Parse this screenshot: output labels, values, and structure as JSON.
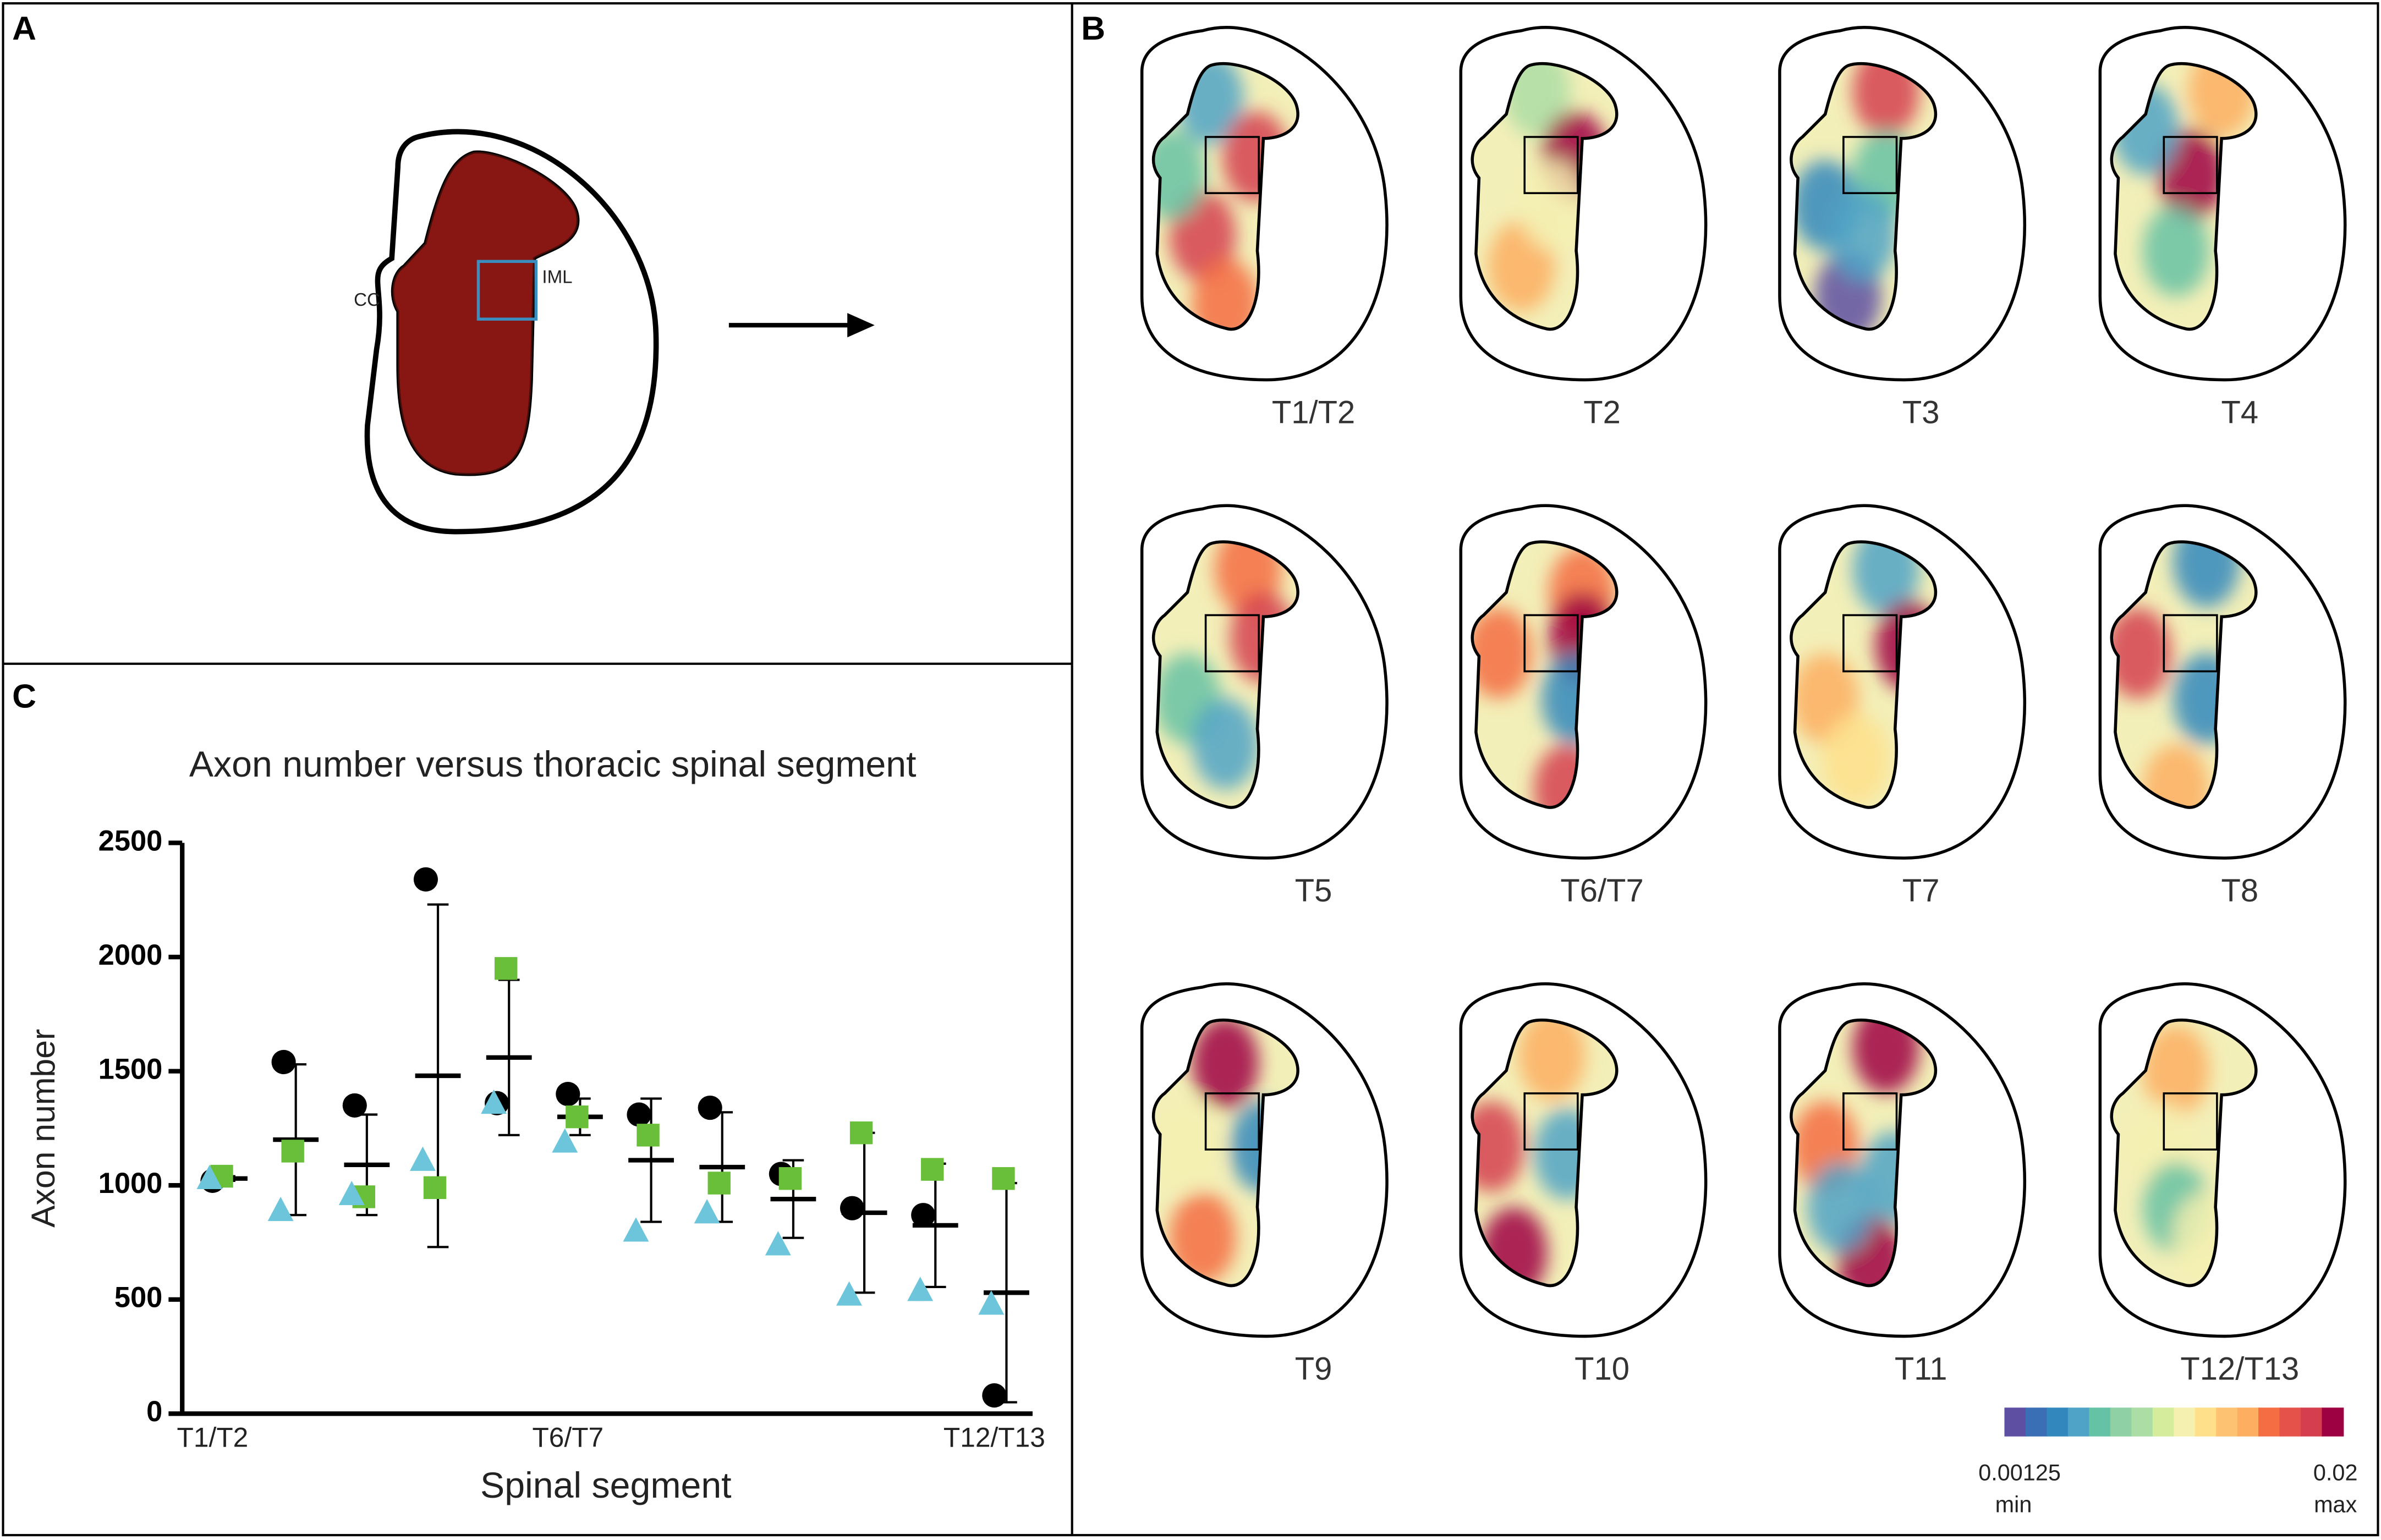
{
  "panel_labels": [
    "A",
    "B",
    "C"
  ],
  "panel_a": {
    "labels": [
      "CC",
      "IML"
    ]
  },
  "panel_b": {
    "sections": [
      "T1/T2",
      "T2",
      "T3",
      "T4",
      "T5",
      "T6/T7",
      "T7",
      "T8",
      "T9",
      "T10",
      "T11",
      "T12/T13"
    ],
    "colorbar": {
      "min_value": 0.00125,
      "min_label": "min",
      "max_value": 0.02,
      "max_label": "max"
    }
  },
  "chart_data": {
    "type": "scatter",
    "title": "Axon number versus thoracic spinal segment",
    "xlabel": "Spinal segment",
    "ylabel": "Axon number",
    "categories": [
      "T1/T2",
      null,
      null,
      null,
      null,
      "T6/T7",
      null,
      null,
      null,
      null,
      null,
      "T12/T13"
    ],
    "series": [
      {
        "marker": "circle",
        "color": "#000000",
        "values": [
          1020,
          1540,
          1350,
          2340,
          1360,
          1400,
          1310,
          1340,
          1050,
          900,
          870,
          80
        ]
      },
      {
        "marker": "square",
        "color": "#6abf3a",
        "values": [
          1040,
          1150,
          950,
          990,
          1950,
          1300,
          1220,
          1010,
          1030,
          1230,
          1070,
          1030
        ]
      },
      {
        "marker": "triangle",
        "color": "#6cc5da",
        "values": [
          1030,
          890,
          960,
          1110,
          1360,
          1190,
          800,
          880,
          740,
          520,
          540,
          480
        ]
      }
    ],
    "error_bars": {
      "mean": [
        1030,
        1200,
        1090,
        1480,
        1560,
        1300,
        1110,
        1080,
        940,
        880,
        825,
        530
      ],
      "sd": [
        10,
        330,
        220,
        750,
        340,
        80,
        270,
        240,
        170,
        350,
        270,
        480
      ]
    },
    "ylim": [
      0,
      2500
    ],
    "yticks": [
      0,
      500,
      1000,
      1500,
      2000,
      2500
    ]
  }
}
